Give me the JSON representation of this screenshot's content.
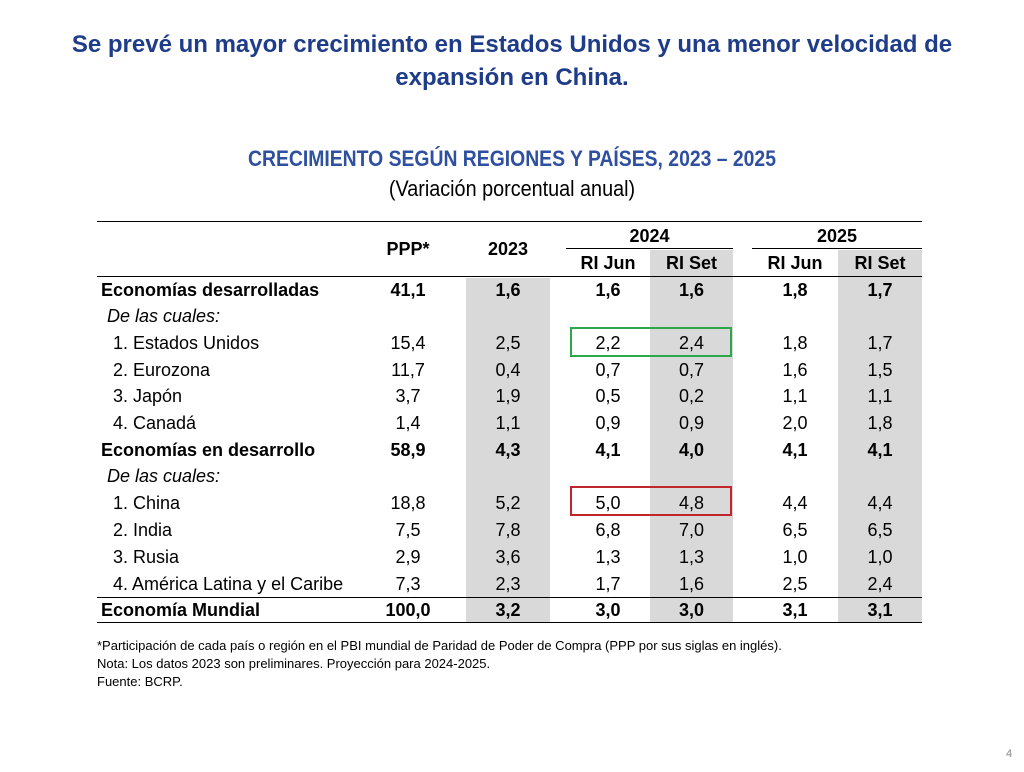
{
  "slide": {
    "title_line1": "Se prevé un mayor crecimiento en Estados Unidos y una menor velocidad de",
    "title_line2": "expansión en China.",
    "page_number": "4"
  },
  "table": {
    "title": "CRECIMIENTO SEGÚN REGIONES Y PAÍSES, 2023 – 2025",
    "subtitle": "(Variación porcentual anual)",
    "headers": {
      "ppp": "PPP*",
      "y2023": "2023",
      "y2024": "2024",
      "y2025": "2025",
      "ri_jun_2024": "RI Jun",
      "ri_set_2024": "RI Set",
      "ri_jun_2025": "RI Jun",
      "ri_set_2025": "RI Set"
    },
    "rows": [
      {
        "label": "Economías desarrolladas",
        "ppp": "41,1",
        "v2023": "1,6",
        "jun24": "1,6",
        "set24": "1,6",
        "jun25": "1,8",
        "set25": "1,7"
      },
      {
        "label": "De las cuales:",
        "ppp": "",
        "v2023": "",
        "jun24": "",
        "set24": "",
        "jun25": "",
        "set25": ""
      },
      {
        "label": "1. Estados Unidos",
        "ppp": "15,4",
        "v2023": "2,5",
        "jun24": "2,2",
        "set24": "2,4",
        "jun25": "1,8",
        "set25": "1,7"
      },
      {
        "label": "2. Eurozona",
        "ppp": "11,7",
        "v2023": "0,4",
        "jun24": "0,7",
        "set24": "0,7",
        "jun25": "1,6",
        "set25": "1,5"
      },
      {
        "label": "3. Japón",
        "ppp": "3,7",
        "v2023": "1,9",
        "jun24": "0,5",
        "set24": "0,2",
        "jun25": "1,1",
        "set25": "1,1"
      },
      {
        "label": "4. Canadá",
        "ppp": "1,4",
        "v2023": "1,1",
        "jun24": "0,9",
        "set24": "0,9",
        "jun25": "2,0",
        "set25": "1,8"
      },
      {
        "label": "Economías en desarrollo",
        "ppp": "58,9",
        "v2023": "4,3",
        "jun24": "4,1",
        "set24": "4,0",
        "jun25": "4,1",
        "set25": "4,1"
      },
      {
        "label": "De las cuales:",
        "ppp": "",
        "v2023": "",
        "jun24": "",
        "set24": "",
        "jun25": "",
        "set25": ""
      },
      {
        "label": "1. China",
        "ppp": "18,8",
        "v2023": "5,2",
        "jun24": "5,0",
        "set24": "4,8",
        "jun25": "4,4",
        "set25": "4,4"
      },
      {
        "label": "2. India",
        "ppp": "7,5",
        "v2023": "7,8",
        "jun24": "6,8",
        "set24": "7,0",
        "jun25": "6,5",
        "set25": "6,5"
      },
      {
        "label": "3. Rusia",
        "ppp": "2,9",
        "v2023": "3,6",
        "jun24": "1,3",
        "set24": "1,3",
        "jun25": "1,0",
        "set25": "1,0"
      },
      {
        "label": "4. América Latina y el Caribe",
        "ppp": "7,3",
        "v2023": "2,3",
        "jun24": "1,7",
        "set24": "1,6",
        "jun25": "2,5",
        "set25": "2,4"
      },
      {
        "label": "Economía Mundial",
        "ppp": "100,0",
        "v2023": "3,2",
        "jun24": "3,0",
        "set24": "3,0",
        "jun25": "3,1",
        "set25": "3,1"
      }
    ],
    "highlight_colors": {
      "estados_unidos": "#2ca84a",
      "china": "#c0262c"
    }
  },
  "footnotes": {
    "ppp_note": "*Participación de cada país o región en el PBI mundial de Paridad de Poder de Compra (PPP por sus siglas en inglés).",
    "note": "Nota: Los datos 2023 son preliminares. Proyección para 2024-2025.",
    "source": "Fuente: BCRP."
  }
}
